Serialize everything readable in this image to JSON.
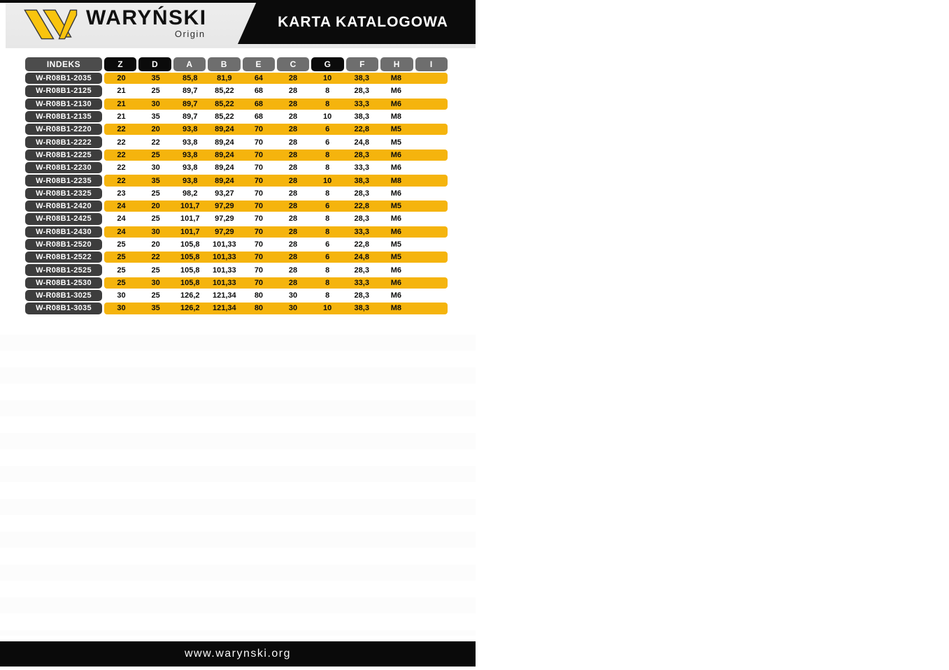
{
  "header": {
    "brand": "WARYŃSKI",
    "brand_sub": "Origin",
    "banner_title": "KARTA KATALOGOWA",
    "colors": {
      "panel_bg": "#e9e9e9",
      "banner_bg": "#0b0b0b",
      "logo_yellow": "#f9c40e"
    }
  },
  "table": {
    "highlight_color": "#f5b40d",
    "columns": [
      {
        "label": "INDEKS",
        "variant": "indeks"
      },
      {
        "label": "Z",
        "variant": "dark"
      },
      {
        "label": "D",
        "variant": "dark"
      },
      {
        "label": "A",
        "variant": "gray"
      },
      {
        "label": "B",
        "variant": "gray"
      },
      {
        "label": "E",
        "variant": "gray"
      },
      {
        "label": "C",
        "variant": "gray"
      },
      {
        "label": "G",
        "variant": "dark"
      },
      {
        "label": "F",
        "variant": "gray"
      },
      {
        "label": "H",
        "variant": "gray"
      },
      {
        "label": "I",
        "variant": "gray"
      }
    ],
    "rows": [
      {
        "indeks": "W-R08B1-2035",
        "values": [
          "20",
          "35",
          "85,8",
          "81,9",
          "64",
          "28",
          "10",
          "38,3",
          "M8",
          ""
        ],
        "highlighted": true
      },
      {
        "indeks": "W-R08B1-2125",
        "values": [
          "21",
          "25",
          "89,7",
          "85,22",
          "68",
          "28",
          "8",
          "28,3",
          "M6",
          ""
        ],
        "highlighted": false
      },
      {
        "indeks": "W-R08B1-2130",
        "values": [
          "21",
          "30",
          "89,7",
          "85,22",
          "68",
          "28",
          "8",
          "33,3",
          "M6",
          ""
        ],
        "highlighted": true
      },
      {
        "indeks": "W-R08B1-2135",
        "values": [
          "21",
          "35",
          "89,7",
          "85,22",
          "68",
          "28",
          "10",
          "38,3",
          "M8",
          ""
        ],
        "highlighted": false
      },
      {
        "indeks": "W-R08B1-2220",
        "values": [
          "22",
          "20",
          "93,8",
          "89,24",
          "70",
          "28",
          "6",
          "22,8",
          "M5",
          ""
        ],
        "highlighted": true
      },
      {
        "indeks": "W-R08B1-2222",
        "values": [
          "22",
          "22",
          "93,8",
          "89,24",
          "70",
          "28",
          "6",
          "24,8",
          "M5",
          ""
        ],
        "highlighted": false
      },
      {
        "indeks": "W-R08B1-2225",
        "values": [
          "22",
          "25",
          "93,8",
          "89,24",
          "70",
          "28",
          "8",
          "28,3",
          "M6",
          ""
        ],
        "highlighted": true
      },
      {
        "indeks": "W-R08B1-2230",
        "values": [
          "22",
          "30",
          "93,8",
          "89,24",
          "70",
          "28",
          "8",
          "33,3",
          "M6",
          ""
        ],
        "highlighted": false
      },
      {
        "indeks": "W-R08B1-2235",
        "values": [
          "22",
          "35",
          "93,8",
          "89,24",
          "70",
          "28",
          "10",
          "38,3",
          "M8",
          ""
        ],
        "highlighted": true
      },
      {
        "indeks": "W-R08B1-2325",
        "values": [
          "23",
          "25",
          "98,2",
          "93,27",
          "70",
          "28",
          "8",
          "28,3",
          "M6",
          ""
        ],
        "highlighted": false
      },
      {
        "indeks": "W-R08B1-2420",
        "values": [
          "24",
          "20",
          "101,7",
          "97,29",
          "70",
          "28",
          "6",
          "22,8",
          "M5",
          ""
        ],
        "highlighted": true
      },
      {
        "indeks": "W-R08B1-2425",
        "values": [
          "24",
          "25",
          "101,7",
          "97,29",
          "70",
          "28",
          "8",
          "28,3",
          "M6",
          ""
        ],
        "highlighted": false
      },
      {
        "indeks": "W-R08B1-2430",
        "values": [
          "24",
          "30",
          "101,7",
          "97,29",
          "70",
          "28",
          "8",
          "33,3",
          "M6",
          ""
        ],
        "highlighted": true
      },
      {
        "indeks": "W-R08B1-2520",
        "values": [
          "25",
          "20",
          "105,8",
          "101,33",
          "70",
          "28",
          "6",
          "22,8",
          "M5",
          ""
        ],
        "highlighted": false
      },
      {
        "indeks": "W-R08B1-2522",
        "values": [
          "25",
          "22",
          "105,8",
          "101,33",
          "70",
          "28",
          "6",
          "24,8",
          "M5",
          ""
        ],
        "highlighted": true
      },
      {
        "indeks": "W-R08B1-2525",
        "values": [
          "25",
          "25",
          "105,8",
          "101,33",
          "70",
          "28",
          "8",
          "28,3",
          "M6",
          ""
        ],
        "highlighted": false
      },
      {
        "indeks": "W-R08B1-2530",
        "values": [
          "25",
          "30",
          "105,8",
          "101,33",
          "70",
          "28",
          "8",
          "33,3",
          "M6",
          ""
        ],
        "highlighted": true
      },
      {
        "indeks": "W-R08B1-3025",
        "values": [
          "30",
          "25",
          "126,2",
          "121,34",
          "80",
          "30",
          "8",
          "28,3",
          "M6",
          ""
        ],
        "highlighted": false
      },
      {
        "indeks": "W-R08B1-3035",
        "values": [
          "30",
          "35",
          "126,2",
          "121,34",
          "80",
          "30",
          "10",
          "38,3",
          "M8",
          ""
        ],
        "highlighted": true
      }
    ]
  },
  "footer": {
    "url": "www.warynski.org"
  }
}
